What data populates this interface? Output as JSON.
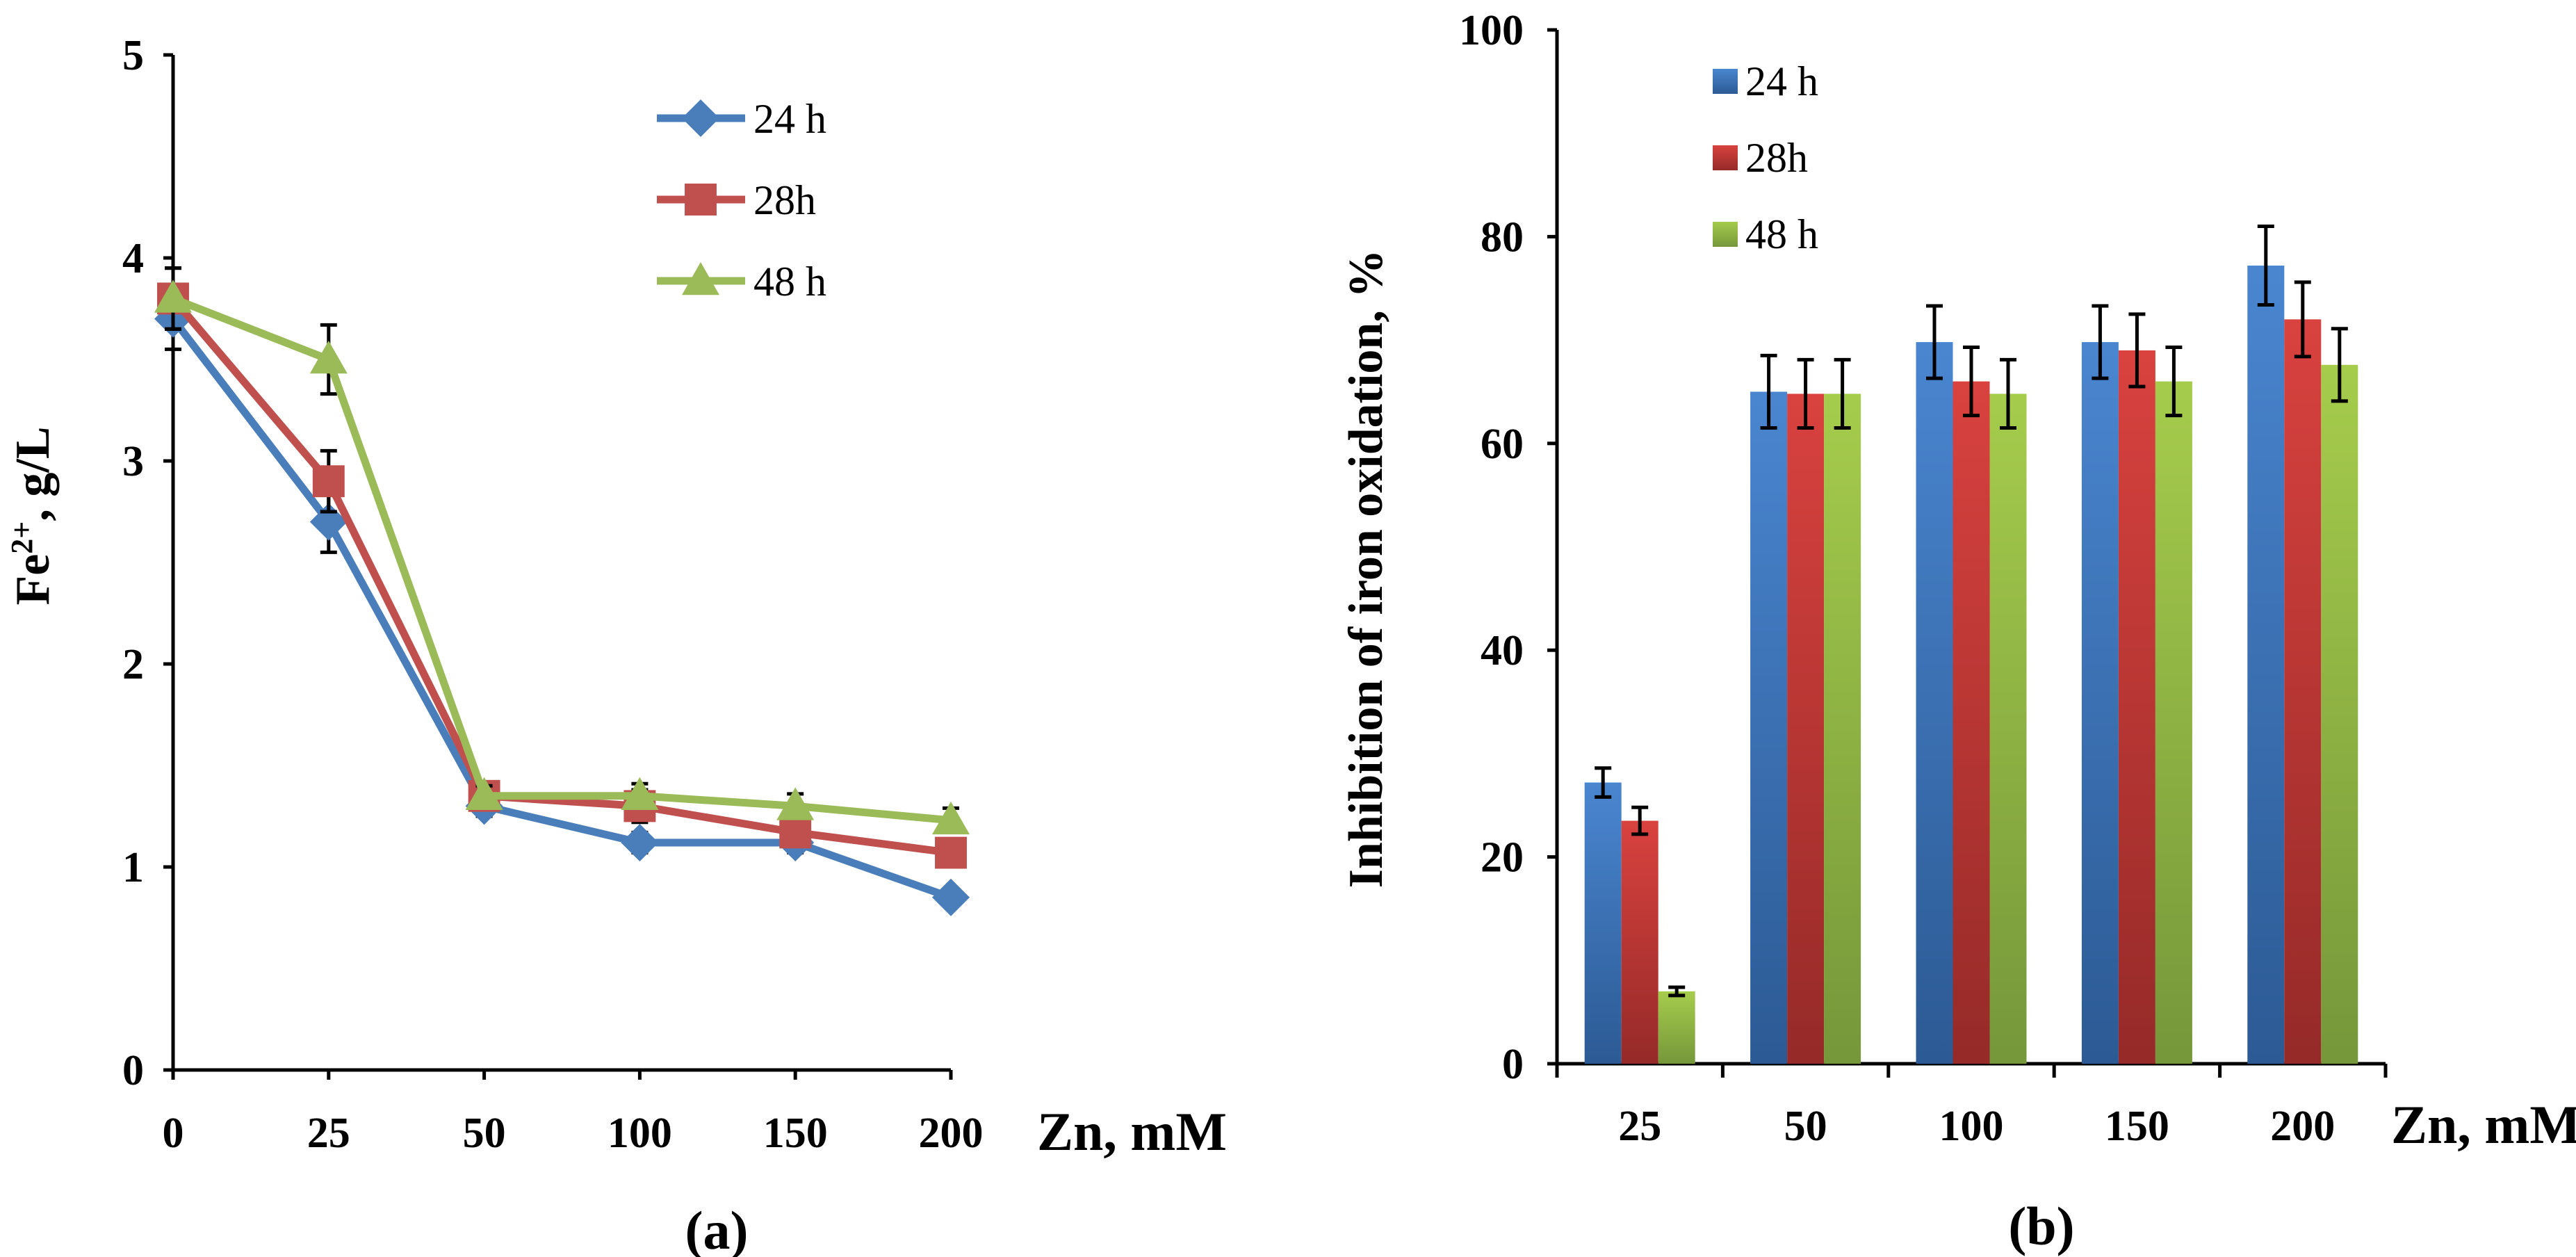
{
  "chart_data": [
    {
      "type": "line",
      "panel_label": "(a)",
      "xlabel": "Zn, mM",
      "ylabel_main": "Fe",
      "ylabel_sup": "2+",
      "ylabel_rest": ", g/L",
      "categories": [
        "0",
        "25",
        "50",
        "100",
        "150",
        "200"
      ],
      "ylim": [
        0,
        5
      ],
      "yticks": [
        "0",
        "1",
        "2",
        "3",
        "4",
        "5"
      ],
      "legend_position": "top-right",
      "series": [
        {
          "name": "24 h",
          "color": "#4a7ebb",
          "marker": "diamond",
          "values": [
            3.7,
            2.7,
            1.3,
            1.12,
            1.12,
            0.85
          ],
          "errors": [
            0.15,
            0.15,
            0.05,
            0.05,
            0.05,
            0.03
          ]
        },
        {
          "name": "28h",
          "color": "#c0504d",
          "marker": "square",
          "values": [
            3.8,
            2.9,
            1.35,
            1.3,
            1.17,
            1.07
          ],
          "errors": [
            0.15,
            0.15,
            0.05,
            0.08,
            0.06,
            0.05
          ]
        },
        {
          "name": "48 h",
          "color": "#9bbb59",
          "marker": "triangle",
          "values": [
            3.8,
            3.5,
            1.35,
            1.35,
            1.3,
            1.23
          ],
          "errors": [
            0.15,
            0.17,
            0.05,
            0.06,
            0.06,
            0.06
          ]
        }
      ]
    },
    {
      "type": "bar",
      "panel_label": "(b)",
      "xlabel": "Zn, mM",
      "ylabel": "Inhibition of iron oxidation, %",
      "categories": [
        "25",
        "50",
        "100",
        "150",
        "200"
      ],
      "ylim": [
        0,
        100
      ],
      "yticks": [
        "0",
        "20",
        "40",
        "60",
        "80",
        "100"
      ],
      "legend_position": "top-left",
      "series": [
        {
          "name": "24 h",
          "color": "#4a7ebb",
          "values": [
            27.2,
            65,
            69.8,
            69.8,
            77.2
          ],
          "errors": [
            1.4,
            3.5,
            3.5,
            3.5,
            3.8
          ]
        },
        {
          "name": "28h",
          "color": "#c0504d",
          "values": [
            23.5,
            64.8,
            66,
            69,
            72
          ],
          "errors": [
            1.3,
            3.3,
            3.3,
            3.5,
            3.6
          ]
        },
        {
          "name": "48 h",
          "color": "#9bbb59",
          "values": [
            7,
            64.8,
            64.8,
            66,
            67.6
          ],
          "errors": [
            0.4,
            3.3,
            3.3,
            3.3,
            3.5
          ]
        }
      ]
    }
  ]
}
